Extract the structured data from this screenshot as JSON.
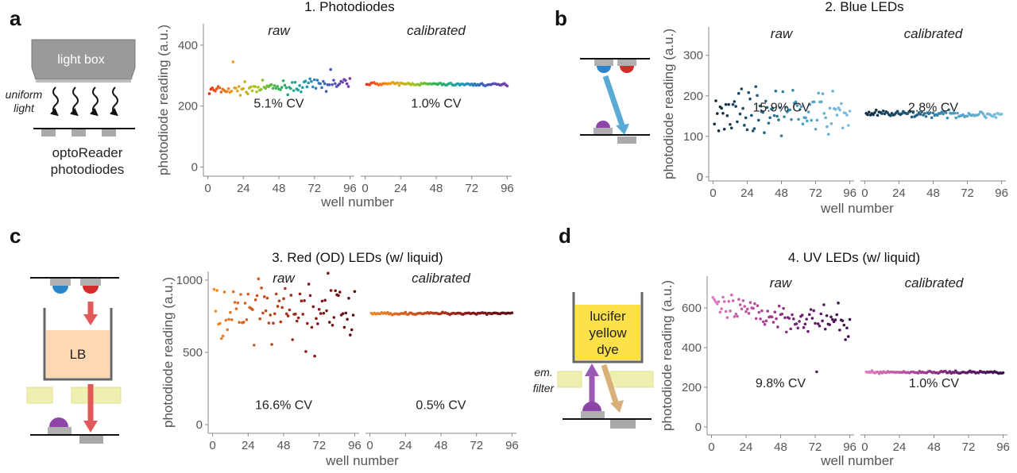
{
  "panels": [
    {
      "letter": "a"
    },
    {
      "letter": "b"
    },
    {
      "letter": "c"
    },
    {
      "letter": "d"
    }
  ],
  "diagrams": {
    "a": {
      "box": "light box",
      "uniform_light": [
        "uniform",
        "light"
      ],
      "caption": [
        "optoReader",
        "photodiodes"
      ]
    },
    "c": {
      "medium": "LB"
    },
    "d": {
      "dye": [
        "lucifer",
        "yellow",
        "dye"
      ],
      "filter": [
        "em.",
        "filter"
      ]
    }
  },
  "colors": {
    "axis": "#888888",
    "blue_led": "#2a86c8",
    "red_led": "#d52b2b",
    "purple": "#8e45a8",
    "arrow_blue": "#5aaad6",
    "arrow_red": "#e05a5a",
    "dye": "#fce14a",
    "filter": "#efefb0",
    "lb": "#ffd7b3"
  },
  "chart_data": [
    {
      "type": "scatter",
      "title": "1. Photodiodes",
      "ylabel": "photodiode reading (a.u.)",
      "xlabel": "well number",
      "facets": [
        "raw",
        "calibrated"
      ],
      "ylim": [
        -30,
        470
      ],
      "yticks": [
        0,
        200,
        400
      ],
      "xticks": [
        0,
        24,
        48,
        72,
        96
      ],
      "palette": "rainbow",
      "annotations": [
        "5.1% CV",
        "1.0% CV"
      ],
      "raw": {
        "mean": 262,
        "noise": 9,
        "trend": 25,
        "outliers": [
          [
            17,
            345
          ],
          [
            83,
            320
          ]
        ]
      },
      "calibrated": {
        "mean": 272,
        "noise": 2,
        "trend": -4
      }
    },
    {
      "type": "scatter",
      "title": "2. Blue LEDs",
      "ylabel": "photodiode reading (a.u.)",
      "xlabel": "well number",
      "facets": [
        "raw",
        "calibrated"
      ],
      "ylim": [
        -10,
        370
      ],
      "yticks": [
        0,
        100,
        200,
        300
      ],
      "xticks": [
        0,
        24,
        48,
        72,
        96
      ],
      "palette": "blue",
      "annotations": [
        "15.9% CV",
        "2.8% CV"
      ],
      "raw": {
        "mean": 162,
        "noise": 25,
        "trend": -15,
        "outliers": []
      },
      "calibrated": {
        "mean": 155,
        "noise": 4,
        "trend": -3
      }
    },
    {
      "type": "scatter",
      "title": "3. Red (OD) LEDs (w/ liquid)",
      "ylabel": "photodiode reading (a.u.)",
      "xlabel": "well number",
      "facets": [
        "raw",
        "calibrated"
      ],
      "ylim": [
        -60,
        1060
      ],
      "yticks": [
        0,
        500,
        1000
      ],
      "xticks": [
        0,
        24,
        48,
        72,
        96
      ],
      "palette": "red",
      "annotations": [
        "16.6% CV",
        "0.5% CV"
      ],
      "raw": {
        "mean": 760,
        "noise": 120,
        "trend": 40,
        "outliers": []
      },
      "calibrated": {
        "mean": 770,
        "noise": 4,
        "trend": 3
      }
    },
    {
      "type": "scatter",
      "title": "4. UV LEDs (w/ liquid)",
      "ylabel": "photodiode reading (a.u.)",
      "xlabel": "well number",
      "facets": [
        "raw",
        "calibrated"
      ],
      "ylim": [
        -40,
        760
      ],
      "yticks": [
        0,
        200,
        400,
        600
      ],
      "xticks": [
        0,
        24,
        48,
        72,
        96
      ],
      "palette": "purple",
      "annotations": [
        "9.8% CV",
        "1.0% CV"
      ],
      "raw": {
        "mean": 560,
        "noise": 35,
        "trend": -80,
        "outliers": [
          [
            73,
            278
          ],
          [
            93,
            440
          ]
        ]
      },
      "calibrated": {
        "mean": 276,
        "noise": 3,
        "trend": 0
      }
    }
  ]
}
